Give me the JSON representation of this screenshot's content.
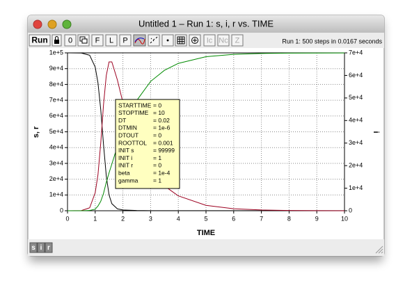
{
  "window": {
    "title": "Untitled 1 – Run 1: s, i, r vs. TIME",
    "toolbar": {
      "run": "Run",
      "buttons": [
        "0",
        "F",
        "L",
        "P",
        "•",
        "Ic",
        "Nc",
        "Z"
      ],
      "status": "Run 1: 500 steps in 0.0167 seconds"
    },
    "bottom_buttons": [
      "s",
      "i",
      "r"
    ]
  },
  "parameters": [
    {
      "name": "STARTTIME",
      "value": "= 0"
    },
    {
      "name": "STOPTIME",
      "value": "= 10"
    },
    {
      "name": "DT",
      "value": "= 0.02"
    },
    {
      "name": "DTMIN",
      "value": "= 1e-6"
    },
    {
      "name": "DTOUT",
      "value": "= 0"
    },
    {
      "name": "ROOTTOL",
      "value": "= 0.001"
    },
    {
      "name": "INIT s",
      "value": "= 99999"
    },
    {
      "name": "INIT i",
      "value": "= 1"
    },
    {
      "name": "INIT r",
      "value": "= 0"
    },
    {
      "name": "beta",
      "value": "= 1e-4"
    },
    {
      "name": "gamma",
      "value": "= 1"
    }
  ],
  "chart_data": {
    "type": "line",
    "xlabel": "TIME",
    "ylabel": "s, r",
    "y2label": "i",
    "grid": true,
    "x": [
      0,
      0.5,
      0.8,
      1.0,
      1.1,
      1.2,
      1.3,
      1.4,
      1.5,
      1.6,
      1.8,
      2.0,
      2.5,
      3.0,
      3.5,
      4.0,
      5.0,
      6.0,
      7.0,
      8.0,
      9.0,
      10
    ],
    "series": [
      {
        "name": "s",
        "color": "#000000",
        "values": [
          99999,
          99900,
          98500,
          91000,
          81000,
          64000,
          42000,
          22000,
          10000,
          4500,
          1200,
          500,
          150,
          80,
          60,
          50,
          45,
          45,
          45,
          45,
          45,
          45
        ]
      },
      {
        "name": "i",
        "color": "#9c0020",
        "axis": "y2",
        "values": [
          1,
          90,
          1300,
          8000,
          16000,
          30000,
          47000,
          60000,
          66000,
          66000,
          58000,
          48000,
          30000,
          18000,
          11000,
          6600,
          2400,
          900,
          330,
          120,
          45,
          16
        ]
      },
      {
        "name": "r",
        "color": "#008a00",
        "values": [
          0,
          10,
          200,
          1000,
          3000,
          6000,
          11000,
          18000,
          24000,
          29500,
          40800,
          51500,
          69850,
          81920,
          88940,
          93350,
          97555,
          99055,
          99625,
          99835,
          99910,
          99939
        ]
      }
    ],
    "xlim": [
      0,
      10
    ],
    "xticks": [
      0,
      1,
      2,
      3,
      4,
      5,
      6,
      7,
      8,
      9,
      10
    ],
    "ylim": [
      0,
      100000
    ],
    "yticks": [
      0,
      {
        "value": 10000,
        "label": "1e+4"
      },
      {
        "value": 20000,
        "label": "2e+4"
      },
      {
        "value": 30000,
        "label": "3e+4"
      },
      {
        "value": 40000,
        "label": "4e+4"
      },
      {
        "value": 50000,
        "label": "5e+4"
      },
      {
        "value": 60000,
        "label": "6e+4"
      },
      {
        "value": 70000,
        "label": "7e+4"
      },
      {
        "value": 80000,
        "label": "8e+4"
      },
      {
        "value": 90000,
        "label": "9e+4"
      },
      {
        "value": 100000,
        "label": "1e+5"
      }
    ],
    "y2lim": [
      0,
      70000
    ],
    "y2ticks": [
      0,
      {
        "value": 10000,
        "label": "1e+4"
      },
      {
        "value": 20000,
        "label": "2e+4"
      },
      {
        "value": 30000,
        "label": "3e+4"
      },
      {
        "value": 40000,
        "label": "4e+4"
      },
      {
        "value": 50000,
        "label": "5e+4"
      },
      {
        "value": 60000,
        "label": "6e+4"
      },
      {
        "value": 70000,
        "label": "7e+4"
      }
    ]
  }
}
